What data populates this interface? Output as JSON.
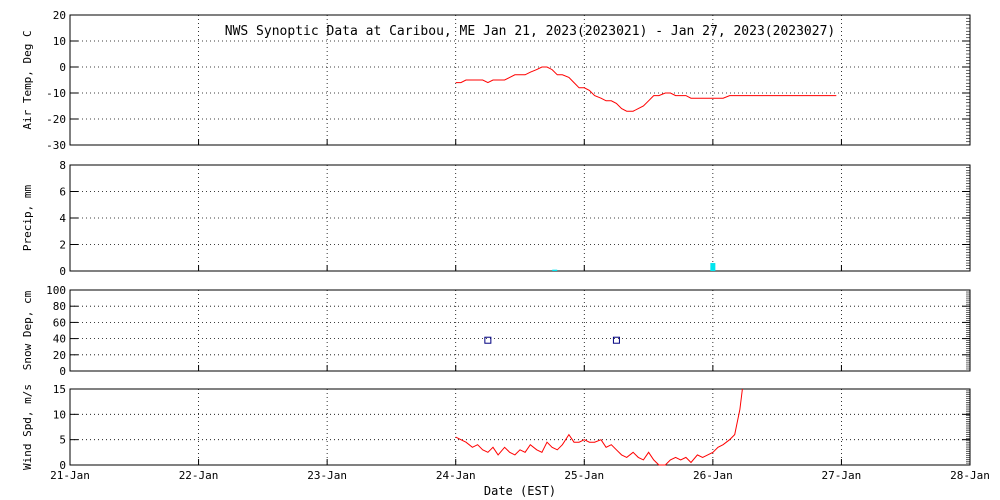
{
  "title": "NWS Synoptic Data at Caribou, ME   Jan 21, 2023(2023021) - Jan 27, 2023(2023027)",
  "xlabel": "Date (EST)",
  "x_ticks": [
    "21-Jan",
    "22-Jan",
    "23-Jan",
    "24-Jan",
    "25-Jan",
    "26-Jan",
    "27-Jan",
    "28-Jan"
  ],
  "colors": {
    "line": "#ff0000",
    "precip": "#00e5ee",
    "snow": "#000080",
    "grid": "#000000"
  },
  "chart_data": [
    {
      "type": "line",
      "name": "air_temp",
      "ylabel": "Air Temp, Deg C",
      "xlim": [
        0,
        7
      ],
      "ylim": [
        -30,
        20
      ],
      "y_ticks": [
        20,
        10,
        0,
        -10,
        -20,
        -30
      ],
      "grid": true,
      "series": [
        {
          "x": [
            0.0,
            0.04,
            0.08,
            0.12,
            0.17,
            0.21,
            0.25,
            0.29,
            0.33,
            0.38,
            0.42,
            0.46,
            0.5,
            0.54,
            0.58,
            0.63,
            0.67,
            0.71,
            0.75,
            0.79,
            0.83,
            0.88,
            0.92,
            0.96,
            1.0,
            1.04,
            1.08,
            1.13,
            1.17,
            1.21,
            1.25,
            1.29,
            1.33,
            1.38,
            1.42,
            1.46,
            1.5,
            1.54,
            1.58,
            1.63,
            1.67,
            1.71,
            1.75,
            1.79,
            1.83,
            1.88,
            1.92,
            1.96,
            2.0,
            2.04,
            2.08,
            2.13,
            2.17,
            2.21,
            2.25,
            2.5,
            2.75,
            2.96
          ],
          "y": [
            -6,
            -6,
            -5,
            -5,
            -5,
            -5,
            -6,
            -5,
            -5,
            -5,
            -4,
            -3,
            -3,
            -3,
            -2,
            -1,
            0,
            0,
            -1,
            -3,
            -3,
            -4,
            -6,
            -8,
            -8,
            -9,
            -11,
            -12,
            -13,
            -13,
            -14,
            -16,
            -17,
            -17,
            -16,
            -15,
            -13,
            -11,
            -11,
            -10,
            -10,
            -11,
            -11,
            -11,
            -12,
            -12,
            -12,
            -12,
            -12,
            -12,
            -12,
            -11,
            -11,
            -11,
            -11,
            -11,
            -11,
            -11
          ]
        }
      ],
      "x_offset_days": 3
    },
    {
      "type": "bar",
      "name": "precip",
      "ylabel": "Precip, mm",
      "xlim": [
        0,
        7
      ],
      "ylim": [
        0,
        8
      ],
      "y_ticks": [
        8,
        6,
        4,
        2,
        0
      ],
      "grid": true,
      "series": [
        {
          "x": [
            3.77,
            5.0
          ],
          "values": [
            0.1,
            0.6
          ]
        }
      ]
    },
    {
      "type": "scatter",
      "name": "snow_depth",
      "ylabel": "Snow Dep, cm",
      "xlim": [
        0,
        7
      ],
      "ylim": [
        0,
        100
      ],
      "y_ticks": [
        100,
        80,
        60,
        40,
        20,
        0
      ],
      "grid": true,
      "series": [
        {
          "x": [
            3.25,
            4.25
          ],
          "y": [
            38,
            38
          ]
        }
      ]
    },
    {
      "type": "line",
      "name": "wind_speed",
      "ylabel": "Wind Spd, m/s",
      "xlim": [
        0,
        7
      ],
      "ylim": [
        0,
        15
      ],
      "y_ticks": [
        15,
        10,
        5,
        0
      ],
      "grid": true,
      "series": [
        {
          "x": [
            3.0,
            3.04,
            3.08,
            3.13,
            3.17,
            3.21,
            3.25,
            3.29,
            3.33,
            3.38,
            3.42,
            3.46,
            3.5,
            3.54,
            3.58,
            3.63,
            3.67,
            3.71,
            3.75,
            3.79,
            3.83,
            3.88,
            3.92,
            3.96,
            4.0,
            4.04,
            4.08,
            4.13,
            4.17,
            4.21,
            4.25,
            4.29,
            4.33,
            4.38,
            4.42,
            4.46,
            4.5,
            4.54,
            4.58,
            4.63,
            4.67,
            4.71,
            4.75,
            4.79,
            4.83,
            4.88,
            4.92,
            4.96,
            5.0,
            5.04,
            5.08,
            5.13,
            5.17,
            5.21,
            5.23
          ],
          "y": [
            5.5,
            5,
            4.5,
            3.5,
            4,
            3,
            2.5,
            3.5,
            2,
            3.5,
            2.5,
            2,
            3,
            2.5,
            4,
            3,
            2.5,
            4.5,
            3.5,
            3,
            4,
            6,
            4.5,
            4.5,
            5,
            4.5,
            4.5,
            5,
            3.5,
            4,
            3,
            2,
            1.5,
            2.5,
            1.5,
            1,
            2.5,
            1,
            0,
            0,
            1,
            1.5,
            1,
            1.5,
            0.5,
            2,
            1.5,
            2,
            2.5,
            3.5,
            4,
            5,
            6,
            11,
            15
          ]
        }
      ]
    }
  ]
}
